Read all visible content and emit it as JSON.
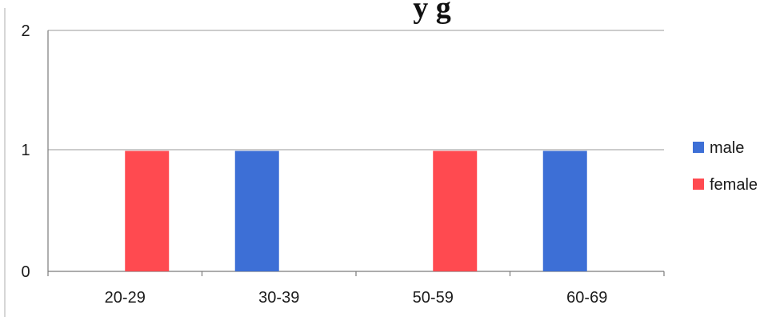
{
  "chart_data": {
    "type": "bar",
    "title": "y g",
    "categories": [
      "20-29",
      "30-39",
      "50-59",
      "60-69"
    ],
    "series": [
      {
        "name": "male",
        "color": "#3d6fd6",
        "values": [
          0,
          1,
          0,
          1
        ]
      },
      {
        "name": "female",
        "color": "#ff4a50",
        "values": [
          1,
          0,
          1,
          0
        ]
      }
    ],
    "ylim": [
      0,
      2
    ],
    "yticks": [
      "0",
      "1",
      "2"
    ],
    "grid": true,
    "legend_position": "right"
  }
}
